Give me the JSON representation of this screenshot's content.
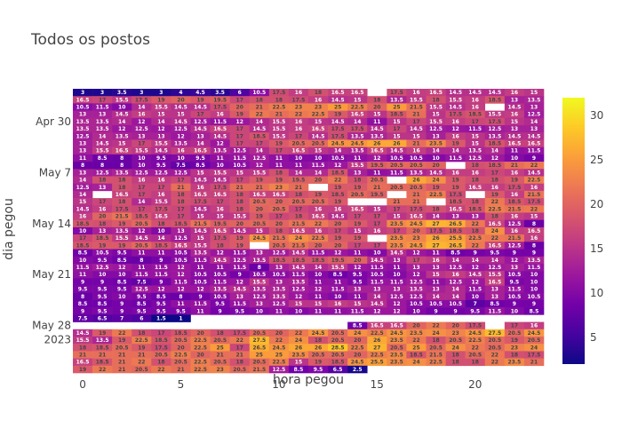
{
  "chart_data": {
    "type": "heatmap",
    "title": "Todos os postos",
    "xlabel": "hora pegou",
    "ylabel": "dia pegou",
    "x_ticks": [
      "0",
      "5",
      "10",
      "15",
      "20"
    ],
    "y_ticks": [
      "Apr 30",
      "May 7",
      "May 14",
      "May 21",
      "May 28\n2023"
    ],
    "colorbar_ticks": [
      "5",
      "10",
      "15",
      "20",
      "25",
      "30"
    ],
    "zrange": [
      2,
      32
    ],
    "colorscale": [
      "#0d0887",
      "#46039f",
      "#7201a8",
      "#9c179e",
      "#bd3786",
      "#d8576b",
      "#ed7953",
      "#fb9f3a",
      "#fdca26",
      "#f0f921"
    ],
    "hours": 24,
    "first_day": "2023-04-26",
    "days": 38,
    "rows": [
      [
        3,
        3,
        3.5,
        3,
        3,
        4,
        4.5,
        3.5,
        6,
        10.5,
        17.5,
        16,
        18,
        16.5,
        16.5,
        null,
        17.5,
        16,
        16.5,
        14.5,
        14.5,
        14.5,
        16,
        15
      ],
      [
        16.5,
        17,
        15.5,
        17.5,
        19,
        20,
        19,
        19.5,
        17,
        18,
        18,
        17.5,
        16,
        14.5,
        15,
        18,
        13.5,
        15.5,
        18,
        15.5,
        16,
        18.5,
        13,
        13.5
      ],
      [
        10.5,
        11.5,
        10,
        14,
        15.5,
        14.5,
        14.5,
        17.5,
        20,
        21,
        22.5,
        23,
        23,
        25,
        22.5,
        20,
        25,
        21.5,
        15.5,
        14.5,
        16,
        null,
        14.5,
        13
      ],
      [
        13,
        13,
        14.5,
        16,
        15,
        15,
        17,
        16,
        19,
        22,
        21,
        22,
        22.5,
        19,
        16.5,
        15,
        18.5,
        21,
        15,
        17.5,
        18.5,
        15.5,
        16,
        12.5
      ],
      [
        13.5,
        13.5,
        14,
        12,
        14,
        14.5,
        12.5,
        11.5,
        12,
        14,
        15.5,
        16,
        15,
        14.5,
        14,
        11,
        15,
        17,
        15.5,
        16,
        17,
        17.5,
        15,
        14
      ],
      [
        13.5,
        13.5,
        12,
        12.5,
        12,
        12.5,
        14.5,
        16.5,
        17,
        14.5,
        15.5,
        16,
        16.5,
        17.5,
        17.5,
        14.5,
        17,
        14.5,
        12.5,
        12,
        11.5,
        12.5,
        13,
        13
      ],
      [
        12.5,
        14,
        13.5,
        13,
        13,
        12,
        13,
        14.5,
        17,
        18.5,
        15.5,
        17,
        14.5,
        17.5,
        13.5,
        13.5,
        15,
        15,
        13,
        16,
        15,
        13.5,
        14.5,
        14.5
      ],
      [
        13,
        14.5,
        15,
        17,
        15.5,
        13.5,
        14,
        12,
        17,
        17,
        19,
        20.5,
        20.5,
        24.5,
        24.5,
        26,
        26,
        21,
        23.5,
        19,
        15,
        18.5,
        16.5,
        16.5
      ],
      [
        13,
        15.5,
        16.5,
        15.5,
        14.5,
        16,
        16.5,
        13.5,
        12.5,
        14,
        17,
        16.5,
        15,
        14,
        13.5,
        16.5,
        14.5,
        16,
        14,
        14,
        13.5,
        14,
        11,
        11.5
      ],
      [
        11,
        8.5,
        8,
        10,
        9.5,
        10,
        9.5,
        11,
        11.5,
        12.5,
        11,
        10,
        10,
        10.5,
        11,
        12,
        10.5,
        10.5,
        10,
        11.5,
        12.5,
        12,
        10,
        9
      ],
      [
        8,
        8,
        8,
        10,
        9.5,
        7.5,
        8.5,
        10,
        10.5,
        12,
        11,
        11,
        11.5,
        12,
        15.5,
        19.5,
        20.5,
        20.5,
        20,
        null,
        18,
        18.5,
        21,
        22
      ],
      [
        13,
        12.5,
        13.5,
        12.5,
        12.5,
        12.5,
        15,
        15.5,
        15,
        15.5,
        18,
        14,
        14,
        18.5,
        13,
        11,
        11.5,
        13.5,
        14.5,
        16,
        16,
        17,
        16,
        14.5
      ],
      [
        14,
        18,
        18,
        16,
        16,
        17,
        14.5,
        14.5,
        17,
        19,
        19,
        19.5,
        20,
        22,
        18,
        20.5,
        null,
        26,
        24,
        19,
        18,
        18,
        19,
        22.5
      ],
      [
        12.5,
        13,
        18,
        17,
        17,
        21,
        16,
        17.5,
        21,
        21,
        23,
        21,
        null,
        19,
        19,
        21,
        20.5,
        20.5,
        19,
        19,
        16.5,
        16,
        17.5,
        16
      ],
      [
        14,
        null,
        16.5,
        17,
        16,
        18,
        16.5,
        16.5,
        18,
        16.5,
        16.5,
        18,
        19,
        18.5,
        20.5,
        19.5,
        null,
        21,
        22.5,
        17.5,
        null,
        19,
        16,
        21.5
      ],
      [
        15,
        17,
        18,
        14,
        15.5,
        18,
        17.5,
        17,
        18,
        20.5,
        20,
        20.5,
        20.5,
        19,
        null,
        null,
        21,
        21,
        null,
        18.5,
        18,
        22,
        18.5,
        17.5
      ],
      [
        14.5,
        16,
        17.5,
        17,
        17.5,
        17,
        14.5,
        16,
        18,
        20,
        20.5,
        17,
        16,
        16,
        16.5,
        15,
        17,
        17.5,
        18,
        16.5,
        18.5,
        22.5,
        21.5,
        22
      ],
      [
        16,
        20,
        21.5,
        18.5,
        16.5,
        17,
        15,
        15,
        15.5,
        19,
        17,
        18,
        16.5,
        14.5,
        17,
        17,
        15,
        16.5,
        14,
        13,
        13,
        18,
        16,
        15
      ],
      [
        18.5,
        18,
        19,
        20.5,
        18,
        18.5,
        21.5,
        19.5,
        20,
        20.5,
        20,
        21.5,
        22,
        20,
        19,
        17,
        23.5,
        24.5,
        27,
        26.5,
        22,
        16.5,
        12.5,
        8
      ],
      [
        10,
        13,
        13.5,
        12,
        10,
        13,
        14.5,
        16.5,
        14.5,
        15,
        18,
        16.5,
        16,
        17,
        15,
        16,
        17,
        20,
        17.5,
        18.5,
        18,
        24,
        16,
        16.5
      ],
      [
        17,
        18.5,
        15.5,
        14.5,
        14,
        12.5,
        15,
        17.5,
        19,
        24.5,
        21.5,
        24,
        22.5,
        19,
        19,
        null,
        23.5,
        23,
        26,
        25.5,
        22.5,
        22,
        21.5,
        16
      ],
      [
        18.5,
        19,
        19,
        20.5,
        18.5,
        16.5,
        15.5,
        18,
        19,
        null,
        20.5,
        21.5,
        20,
        20,
        17,
        17,
        23.5,
        24.5,
        27,
        26.5,
        22,
        16.5,
        12.5,
        8
      ],
      [
        8.5,
        10.5,
        9.5,
        11,
        11,
        10.5,
        13.5,
        12,
        11.5,
        13,
        12.5,
        14.5,
        11.5,
        12,
        11,
        10,
        14.5,
        12,
        11,
        8.5,
        9,
        9.5,
        9,
        9
      ],
      [
        10,
        9.5,
        8.5,
        8,
        9,
        10.5,
        11.5,
        14.5,
        12.5,
        13.5,
        18.5,
        18.5,
        18.5,
        19.5,
        20,
        14.5,
        13,
        17,
        16,
        14,
        14,
        14,
        12,
        13.5
      ],
      [
        11.5,
        12.5,
        12,
        11,
        11.5,
        12,
        11,
        11,
        11.5,
        8,
        13,
        14.5,
        14,
        15.5,
        12,
        11.5,
        11,
        13,
        13,
        12.5,
        12,
        12.5,
        13,
        11.5
      ],
      [
        11,
        10,
        10,
        11.5,
        11.5,
        12,
        10.5,
        10.5,
        9,
        10.5,
        10.5,
        11.5,
        10,
        8.5,
        9.5,
        10.5,
        10,
        12,
        15,
        16,
        14.5,
        15.5,
        10.5,
        10
      ],
      [
        9,
        9,
        8.5,
        7.5,
        9,
        11.5,
        10.5,
        11.5,
        12,
        15.5,
        13,
        13.5,
        11,
        11,
        9.5,
        11.5,
        11.5,
        12.5,
        11,
        12.5,
        12,
        16.5,
        9.5,
        10
      ],
      [
        9.5,
        9.5,
        9.5,
        12.5,
        12,
        12,
        12,
        13.5,
        14.5,
        13.5,
        13.5,
        12.5,
        12,
        11.5,
        13,
        13,
        13,
        13.5,
        13,
        14,
        11.5,
        13,
        11.5,
        10
      ],
      [
        8,
        9.5,
        10,
        9.5,
        8.5,
        8,
        9,
        10.5,
        13,
        12.5,
        13.5,
        12,
        11,
        10,
        11,
        14,
        12.5,
        12.5,
        14,
        14,
        10,
        13,
        10.5,
        10.5
      ],
      [
        8.5,
        8.5,
        9,
        8.5,
        9.5,
        11,
        11.5,
        9.5,
        11.5,
        13,
        12.5,
        15,
        15,
        16,
        15,
        14.5,
        12,
        10.5,
        10.5,
        10.5,
        7,
        8.5,
        9,
        9
      ],
      [
        9,
        9.5,
        9,
        9.5,
        9.5,
        9.5,
        11,
        9,
        9.5,
        10,
        11,
        10,
        11,
        11,
        11.5,
        12,
        12,
        10,
        9,
        9,
        9.5,
        11.5,
        10,
        8.5
      ],
      [
        7.5,
        6.5,
        7,
        6,
        1.5,
        1,
        null,
        null,
        null,
        null,
        null,
        null,
        null,
        null,
        null,
        null,
        null,
        null,
        null,
        null,
        null,
        null,
        null,
        null
      ],
      [
        null,
        null,
        null,
        null,
        null,
        null,
        null,
        null,
        null,
        null,
        null,
        null,
        null,
        null,
        8.5,
        16.5,
        16.5,
        20,
        22,
        20,
        17.5,
        null,
        17,
        16
      ],
      [
        14.5,
        19,
        22,
        18,
        17,
        18.5,
        20,
        18,
        17.5,
        20.5,
        20,
        22,
        24.5,
        20.5,
        24,
        22.5,
        24.5,
        23.5,
        24,
        23,
        24.5,
        27.5,
        20.5,
        24.5
      ],
      [
        15.5,
        13.5,
        19,
        22.5,
        18.5,
        20.5,
        22.5,
        20.5,
        22,
        27.5,
        22,
        24,
        18,
        20.5,
        20,
        26,
        23.5,
        22,
        18,
        20.5,
        22.5,
        20.5,
        19,
        20.5
      ],
      [
        18,
        18.5,
        20.5,
        19,
        17.5,
        20,
        22.5,
        25,
        17,
        26.5,
        24.5,
        26,
        26,
        28.5,
        22.5,
        27,
        20.5,
        25,
        20.5,
        24,
        22,
        20.5,
        23,
        24
      ],
      [
        21,
        21,
        21,
        21,
        20.5,
        22.5,
        20,
        21,
        21,
        25,
        25,
        23.5,
        20.5,
        20.5,
        20,
        22.5,
        23.5,
        18.5,
        21.5,
        18,
        20.5,
        22,
        18,
        17.5
      ],
      [
        16.5,
        18.5,
        21,
        22,
        18,
        20.5,
        22.5,
        20.5,
        18,
        20.5,
        22.5,
        15,
        19,
        18.5,
        24.5,
        25.5,
        23.5,
        24,
        22.5,
        18,
        18,
        22,
        23.5,
        21
      ]
    ],
    "last_row_partial": [
      19,
      22,
      21,
      20.5,
      22,
      21,
      22.5,
      23,
      20.5,
      21.5,
      12.5,
      8.5,
      9.5,
      6.5,
      2.5,
      null,
      null,
      null,
      null,
      null,
      null,
      null,
      null,
      null
    ]
  }
}
